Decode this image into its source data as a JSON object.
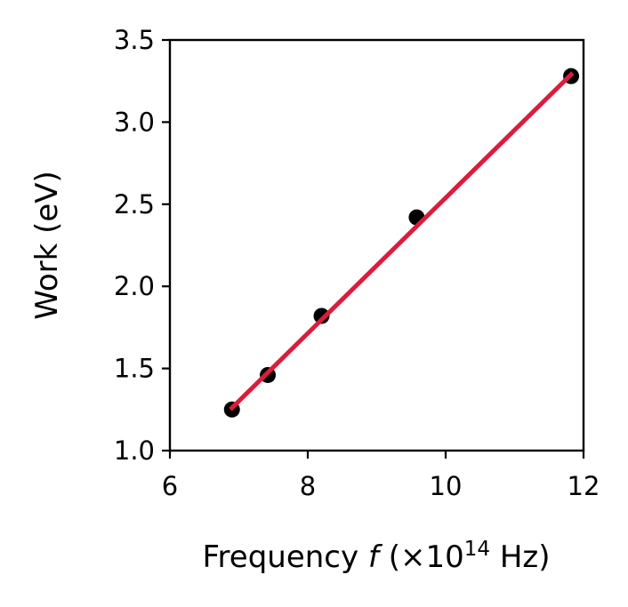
{
  "chart_data": {
    "type": "scatter",
    "title": "",
    "xlabel_parts": {
      "prefix": "Frequency ",
      "variable": "f",
      "middle": " (×10",
      "exponent": "14",
      "suffix": " Hz)"
    },
    "ylabel": "Work (eV)",
    "xlim": [
      6,
      12
    ],
    "ylim": [
      1.0,
      3.5
    ],
    "xticks": [
      6,
      8,
      10,
      12
    ],
    "xtick_labels": [
      "6",
      "8",
      "10",
      "12"
    ],
    "yticks": [
      1.0,
      1.5,
      2.0,
      2.5,
      3.0,
      3.5
    ],
    "ytick_labels": [
      "1.0",
      "1.5",
      "2.0",
      "2.5",
      "3.0",
      "3.5"
    ],
    "grid": false,
    "series": [
      {
        "kind": "scatter",
        "color": "#000000",
        "x": [
          6.9,
          7.42,
          8.2,
          9.58,
          11.82
        ],
        "y": [
          1.25,
          1.46,
          1.82,
          2.42,
          3.28
        ]
      },
      {
        "kind": "line",
        "color": "#dc1c3c",
        "x": [
          6.9,
          11.82
        ],
        "y": [
          1.26,
          3.29
        ]
      }
    ]
  }
}
